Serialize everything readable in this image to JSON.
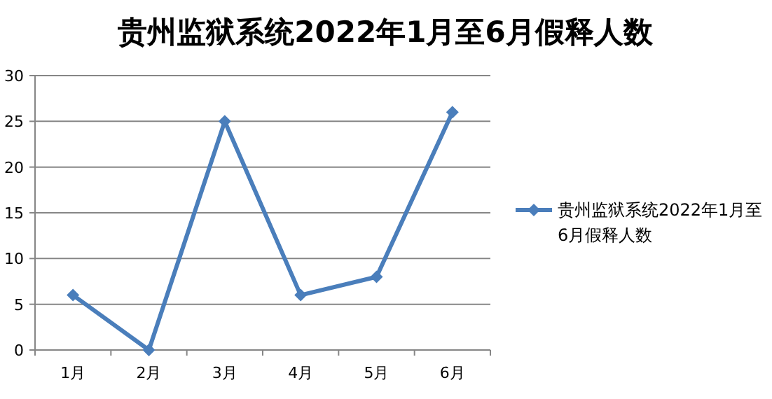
{
  "chart_data": {
    "type": "line",
    "title": "贵州监狱系统2022年1月至6月假释人数",
    "categories": [
      "1月",
      "2月",
      "3月",
      "4月",
      "5月",
      "6月"
    ],
    "series": [
      {
        "name": "贵州监狱系统2022年1月至6月假释人数",
        "color": "#4a7ebb",
        "values": [
          6,
          0,
          25,
          6,
          8,
          26
        ]
      }
    ],
    "ylim": [
      0,
      30
    ],
    "yticks": [
      0,
      5,
      10,
      15,
      20,
      25,
      30
    ],
    "grid": "y",
    "legend": "right",
    "marker": "diamond",
    "line_style": "solid"
  }
}
